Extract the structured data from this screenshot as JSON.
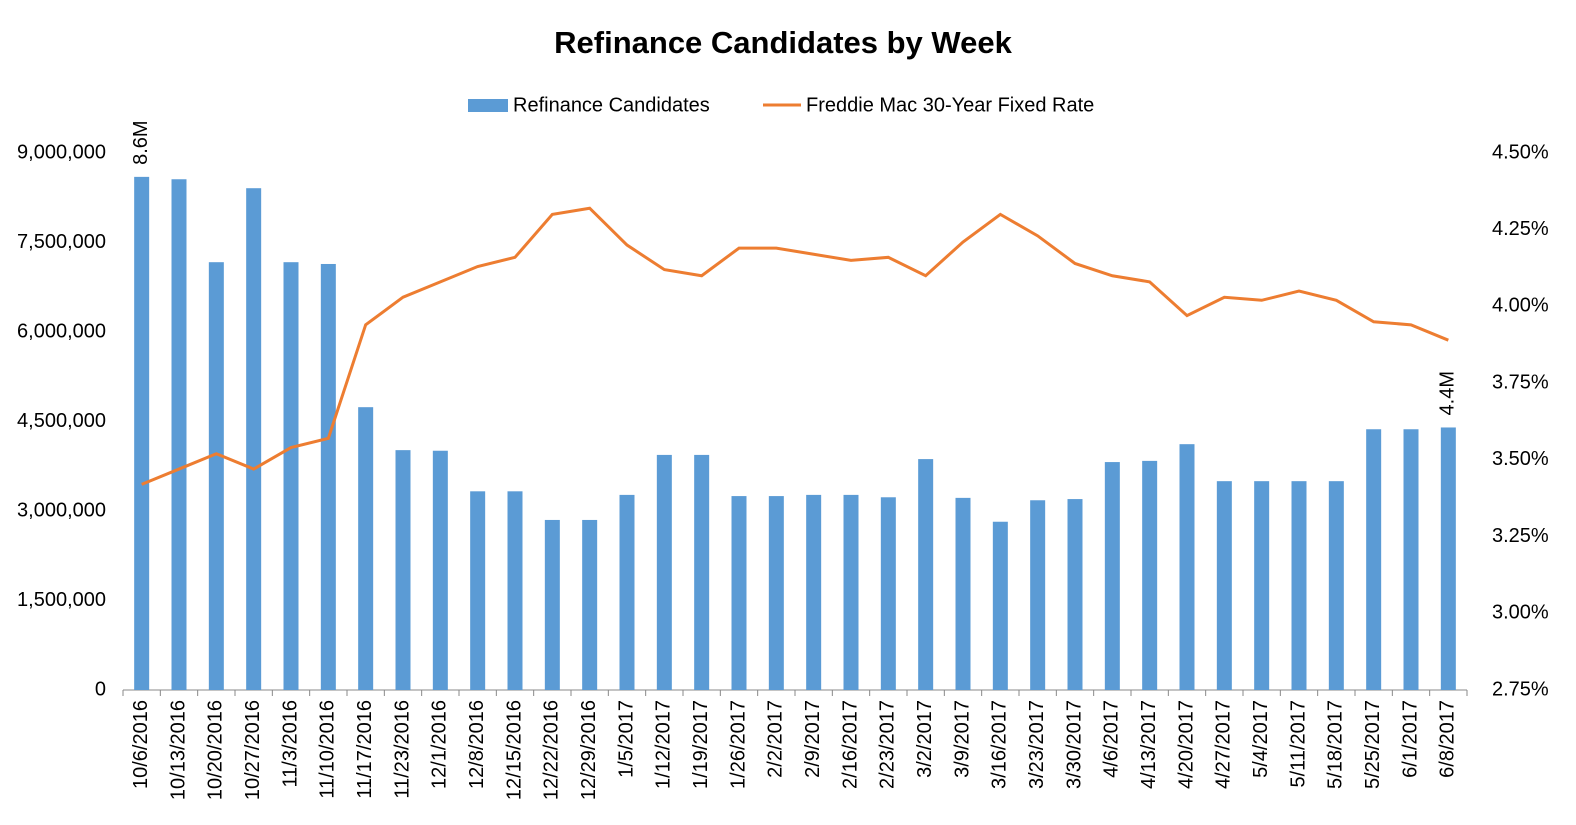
{
  "chart_data": {
    "type": "bar-line",
    "title": "Refinance Candidates by Week",
    "categories": [
      "10/6/2016",
      "10/13/2016",
      "10/20/2016",
      "10/27/2016",
      "11/3/2016",
      "11/10/2016",
      "11/17/2016",
      "11/23/2016",
      "12/1/2016",
      "12/8/2016",
      "12/15/2016",
      "12/22/2016",
      "12/29/2016",
      "1/5/2017",
      "1/12/2017",
      "1/19/2017",
      "1/26/2017",
      "2/2/2017",
      "2/9/2017",
      "2/16/2017",
      "2/23/2017",
      "3/2/2017",
      "3/9/2017",
      "3/16/2017",
      "3/23/2017",
      "3/30/2017",
      "4/6/2017",
      "4/13/2017",
      "4/20/2017",
      "4/27/2017",
      "5/4/2017",
      "5/11/2017",
      "5/18/2017",
      "5/25/2017",
      "6/1/2017",
      "6/8/2017"
    ],
    "series": [
      {
        "name": "Refinance Candidates",
        "type": "bar",
        "color": "#5b9bd5",
        "values": [
          8600000,
          8560000,
          7170000,
          8410000,
          7170000,
          7140000,
          4740000,
          4020000,
          4010000,
          3330000,
          3330000,
          2850000,
          2850000,
          3270000,
          3940000,
          3940000,
          3250000,
          3250000,
          3270000,
          3270000,
          3230000,
          3870000,
          3220000,
          2820000,
          3180000,
          3200000,
          3820000,
          3840000,
          4120000,
          3500000,
          3500000,
          3500000,
          3500000,
          4370000,
          4370000,
          4400000
        ],
        "value_labels": [
          "8.6M",
          null,
          null,
          null,
          null,
          null,
          null,
          null,
          null,
          null,
          null,
          null,
          null,
          null,
          null,
          null,
          null,
          null,
          null,
          null,
          null,
          null,
          null,
          null,
          null,
          null,
          null,
          null,
          null,
          null,
          null,
          null,
          null,
          null,
          null,
          "4.4M"
        ]
      },
      {
        "name": "Freddie Mac 30-Year Fixed Rate",
        "type": "line",
        "axis": "y2",
        "color": "#ed7d31",
        "values": [
          3.42,
          3.47,
          3.52,
          3.47,
          3.54,
          3.57,
          3.94,
          4.03,
          4.08,
          4.13,
          4.16,
          4.3,
          4.32,
          4.2,
          4.12,
          4.1,
          4.19,
          4.19,
          4.17,
          4.15,
          4.16,
          4.1,
          4.21,
          4.3,
          4.23,
          4.14,
          4.1,
          4.08,
          3.97,
          4.03,
          4.02,
          4.05,
          4.02,
          3.95,
          3.94,
          3.89
        ]
      }
    ],
    "ylim": [
      0,
      9000000
    ],
    "yticks": [
      0,
      {
        "value": 1500000,
        "label": "1,500,000"
      },
      {
        "value": 3000000,
        "label": "3,000,000"
      },
      {
        "value": 4500000,
        "label": "4,500,000"
      },
      {
        "value": 6000000,
        "label": "6,000,000"
      },
      {
        "value": 7500000,
        "label": "7,500,000"
      },
      {
        "value": 9000000,
        "label": "9,000,000"
      }
    ],
    "y2lim": [
      2.75,
      4.5
    ],
    "y2ticks": [
      {
        "value": 2.75,
        "label": "2.75%"
      },
      {
        "value": 3.0,
        "label": "3.00%"
      },
      {
        "value": 3.25,
        "label": "3.25%"
      },
      {
        "value": 3.5,
        "label": "3.50%"
      },
      {
        "value": 3.75,
        "label": "3.75%"
      },
      {
        "value": 4.0,
        "label": "4.00%"
      },
      {
        "value": 4.25,
        "label": "4.25%"
      },
      {
        "value": 4.5,
        "label": "4.50%"
      }
    ],
    "legend": "top"
  }
}
